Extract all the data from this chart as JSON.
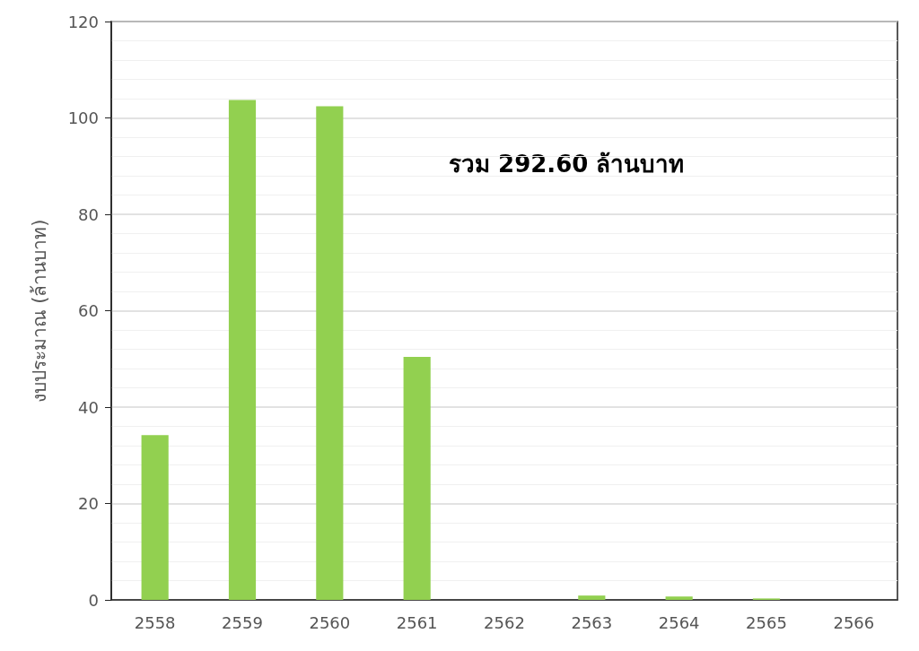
{
  "chart_data": {
    "type": "bar",
    "ylabel": "งบประมาณ (ล้านบาท)",
    "annotations": [
      "รวม 292.60 ล้านบาท"
    ],
    "categories": [
      "2558",
      "2559",
      "2560",
      "2561",
      "2562",
      "2563",
      "2564",
      "2565",
      "2566"
    ],
    "values": [
      34.2,
      103.7,
      102.4,
      50.4,
      0,
      0.9,
      0.7,
      0.3,
      0
    ],
    "color": "#92d050",
    "ylim": [
      0,
      120
    ],
    "yticks": [
      0,
      20,
      40,
      60,
      80,
      100,
      120
    ],
    "grid": "y"
  }
}
